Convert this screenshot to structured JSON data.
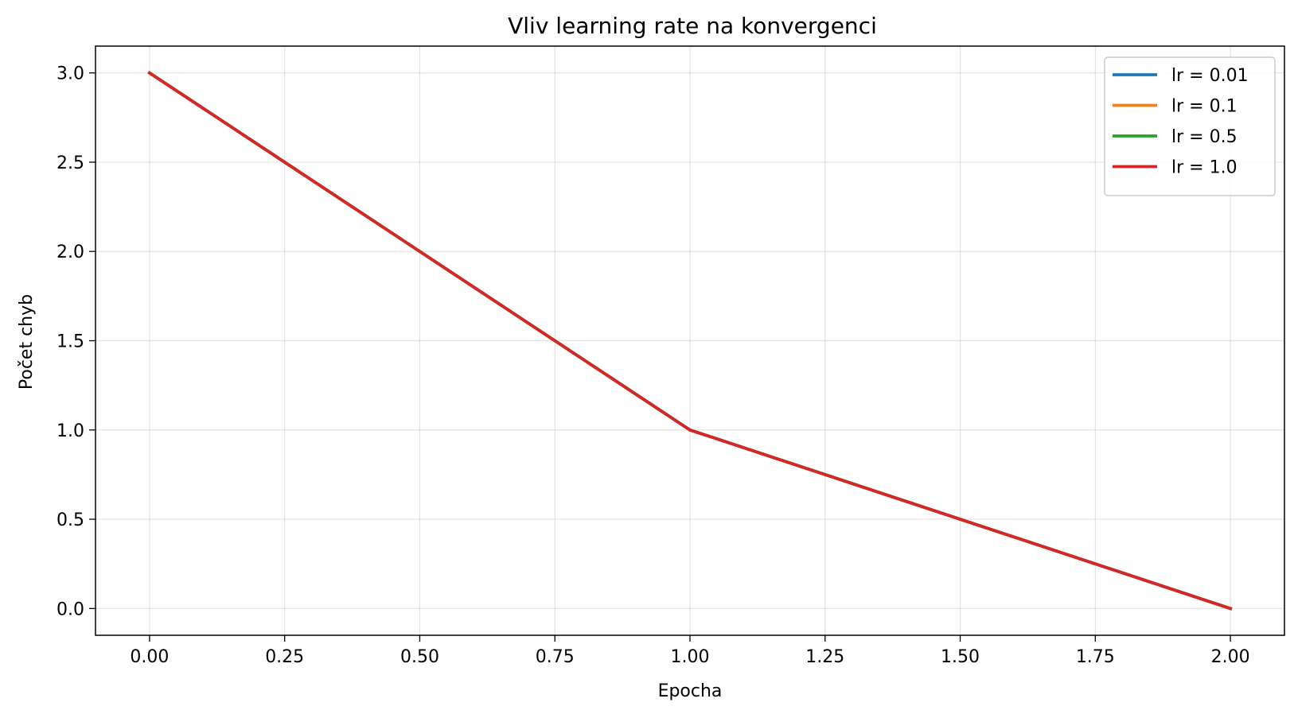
{
  "chart_data": {
    "type": "line",
    "title": "Vliv learning rate na konvergenci",
    "xlabel": "Epocha",
    "ylabel": "Počet chyb",
    "x": [
      0,
      1,
      2
    ],
    "xlim": [
      -0.1,
      2.1
    ],
    "ylim": [
      -0.15,
      3.15
    ],
    "xticks": [
      0.0,
      0.25,
      0.5,
      0.75,
      1.0,
      1.25,
      1.5,
      1.75,
      2.0
    ],
    "xtick_labels": [
      "0.00",
      "0.25",
      "0.50",
      "0.75",
      "1.00",
      "1.25",
      "1.50",
      "1.75",
      "2.00"
    ],
    "yticks": [
      0.0,
      0.5,
      1.0,
      1.5,
      2.0,
      2.5,
      3.0
    ],
    "ytick_labels": [
      "0.0",
      "0.5",
      "1.0",
      "1.5",
      "2.0",
      "2.5",
      "3.0"
    ],
    "grid": true,
    "legend_position": "top-right",
    "series": [
      {
        "name": "lr = 0.01",
        "color": "#1f77b4",
        "values": [
          3,
          1,
          0
        ]
      },
      {
        "name": "lr = 0.1",
        "color": "#ff7f0e",
        "values": [
          3,
          1,
          0
        ]
      },
      {
        "name": "lr = 0.5",
        "color": "#2ca02c",
        "values": [
          3,
          1,
          0
        ]
      },
      {
        "name": "lr = 1.0",
        "color": "#d62728",
        "values": [
          3,
          1,
          0
        ]
      }
    ]
  }
}
